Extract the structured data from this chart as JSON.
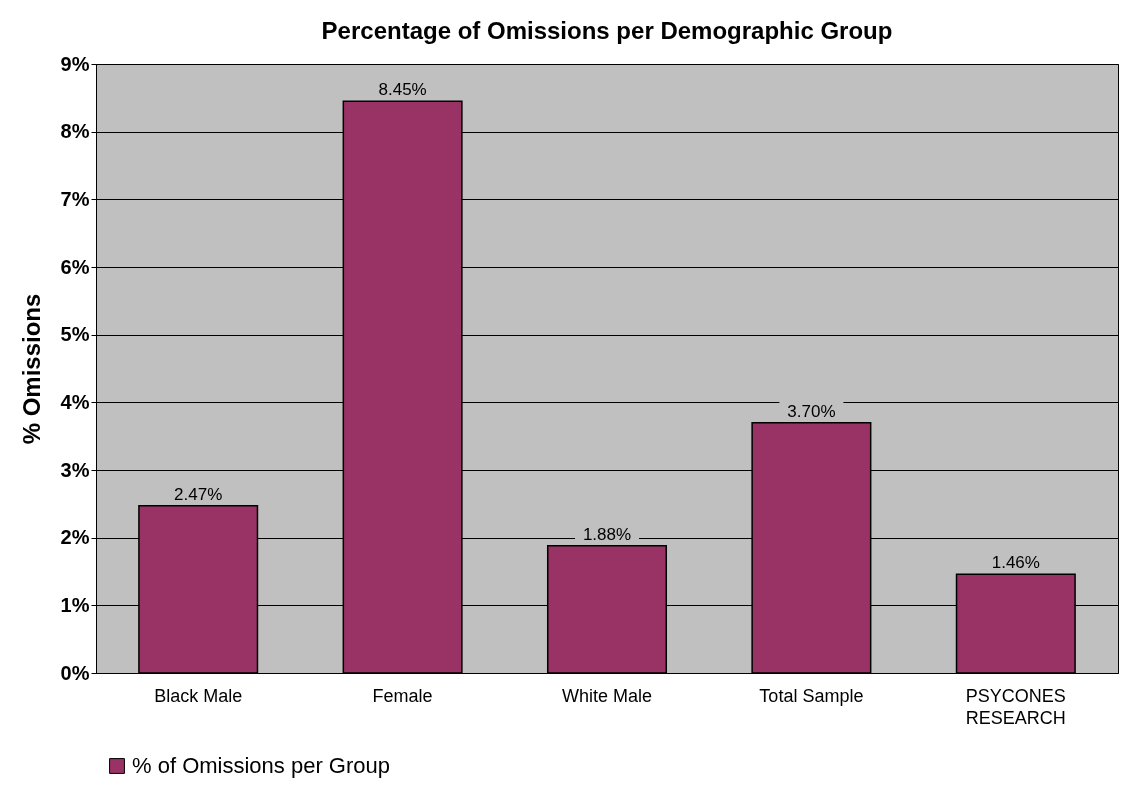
{
  "chart_data": {
    "type": "bar",
    "title": "Percentage of Omissions per Demographic Group",
    "ylabel": "% Omissions",
    "categories": [
      "Black Male",
      "Female",
      "White Male",
      "Total Sample",
      "PSYCONES RESEARCH"
    ],
    "series": [
      {
        "name": "% of Omissions per Group",
        "color": "#993366",
        "values": [
          2.47,
          8.45,
          1.88,
          3.7,
          1.46
        ],
        "value_labels": [
          "2.47%",
          "8.45%",
          "1.88%",
          "3.70%",
          "1.46%"
        ]
      }
    ],
    "ylim": [
      0,
      9
    ],
    "yticks": [
      {
        "value": 0,
        "label": "0%"
      },
      {
        "value": 1,
        "label": "1%"
      },
      {
        "value": 2,
        "label": "2%"
      },
      {
        "value": 3,
        "label": "3%"
      },
      {
        "value": 4,
        "label": "4%"
      },
      {
        "value": 5,
        "label": "5%"
      },
      {
        "value": 6,
        "label": "6%"
      },
      {
        "value": 7,
        "label": "7%"
      },
      {
        "value": 8,
        "label": "8%"
      },
      {
        "value": 9,
        "label": "9%"
      }
    ],
    "grid": "y",
    "legend": "bottom"
  }
}
